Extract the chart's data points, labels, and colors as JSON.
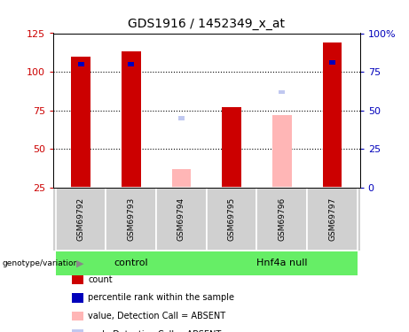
{
  "title": "GDS1916 / 1452349_x_at",
  "samples": [
    "GSM69792",
    "GSM69793",
    "GSM69794",
    "GSM69795",
    "GSM69796",
    "GSM69797"
  ],
  "group_labels": [
    "control",
    "Hnf4a null"
  ],
  "count_values": [
    110,
    113,
    null,
    77,
    null,
    119
  ],
  "rank_values": [
    80,
    80,
    null,
    null,
    null,
    81
  ],
  "absent_value_values": [
    null,
    null,
    37,
    null,
    72,
    null
  ],
  "absent_rank_values": [
    null,
    null,
    45,
    null,
    62,
    null
  ],
  "left_ylim": [
    25,
    125
  ],
  "right_ylim": [
    0,
    100
  ],
  "left_yticks": [
    25,
    50,
    75,
    100,
    125
  ],
  "right_yticks": [
    0,
    25,
    50,
    75,
    100
  ],
  "right_yticklabels": [
    "0",
    "25",
    "50",
    "75",
    "100%"
  ],
  "color_count": "#cc0000",
  "color_rank": "#0000bb",
  "color_absent_value": "#ffb6b6",
  "color_absent_rank": "#c0c8f0",
  "bar_width": 0.38,
  "small_bar_width": 0.12,
  "bg_sample": "#c8c8c8",
  "bg_group": "#66ee66",
  "legend_items": [
    {
      "label": "count",
      "color": "#cc0000"
    },
    {
      "label": "percentile rank within the sample",
      "color": "#0000bb"
    },
    {
      "label": "value, Detection Call = ABSENT",
      "color": "#ffb6b6"
    },
    {
      "label": "rank, Detection Call = ABSENT",
      "color": "#c0c8f0"
    }
  ]
}
